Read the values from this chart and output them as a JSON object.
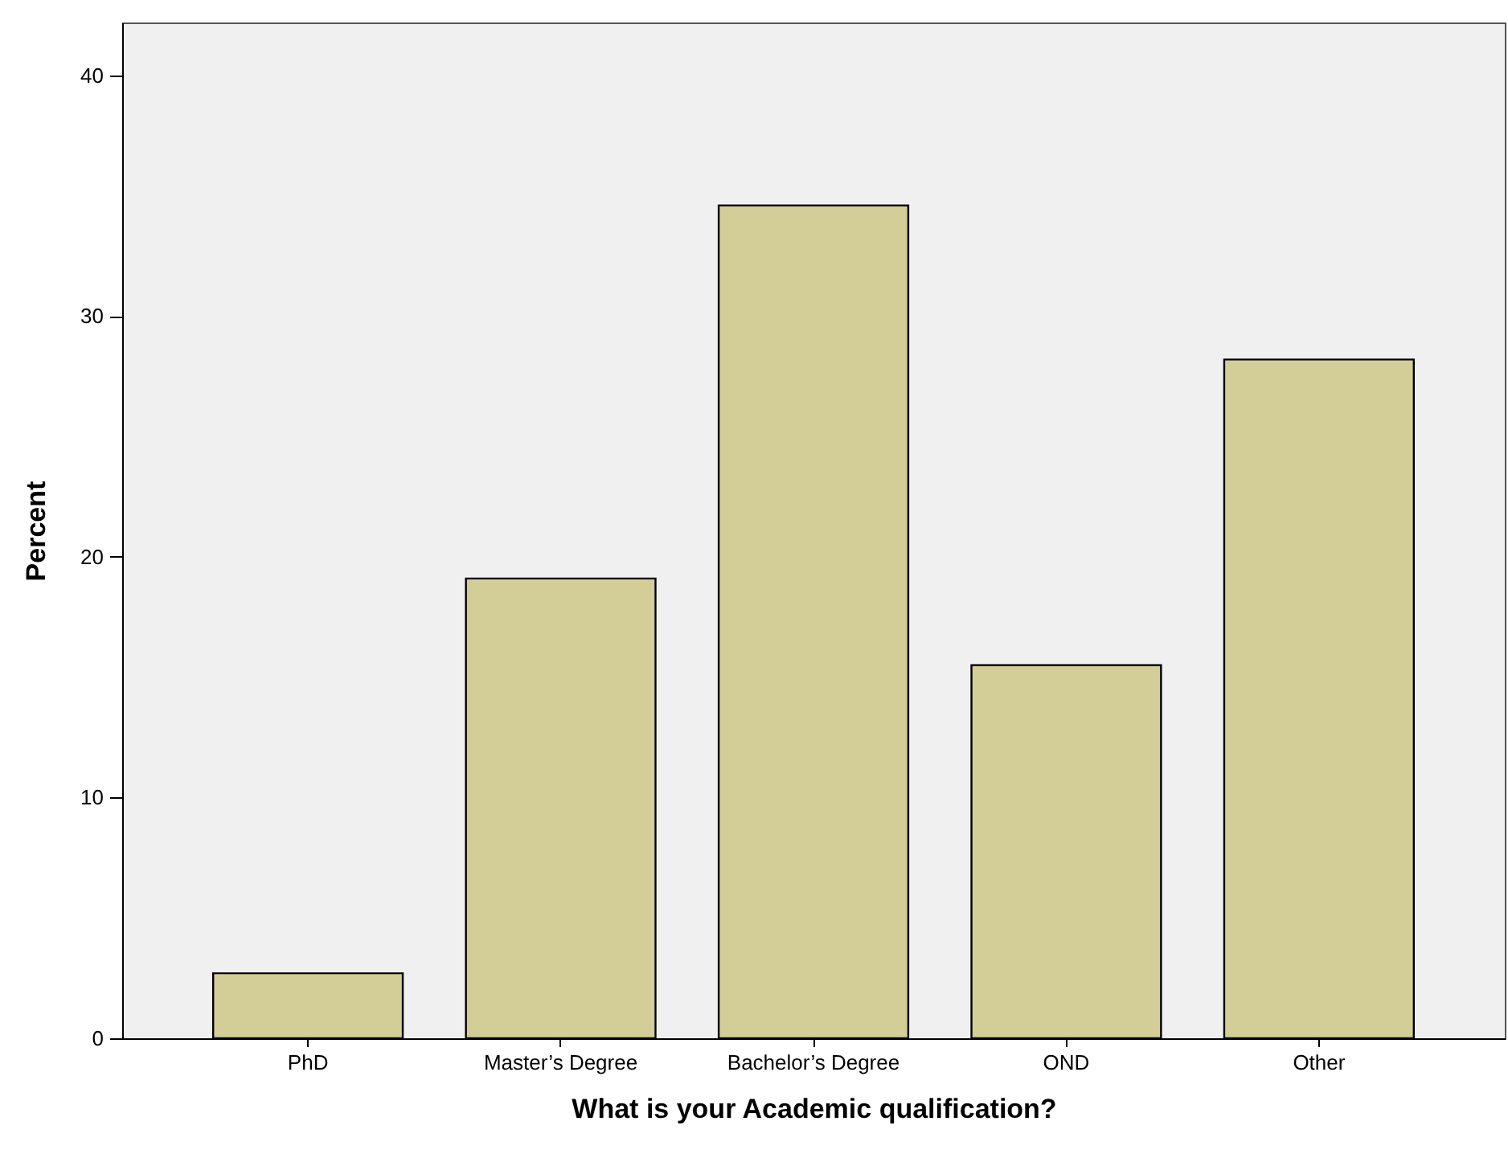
{
  "chart_data": {
    "type": "bar",
    "xlabel": "What is your Academic qualification?",
    "ylabel": "Percent",
    "categories": [
      "PhD",
      "Master’s Degree",
      "Bachelor’s Degree",
      "OND",
      "Other"
    ],
    "values": [
      2.7,
      19.1,
      34.6,
      15.5,
      28.2
    ],
    "color": "#d3ce97",
    "ylim": [
      0,
      42.2
    ],
    "yticks": [
      0,
      10,
      20,
      30,
      40
    ]
  }
}
